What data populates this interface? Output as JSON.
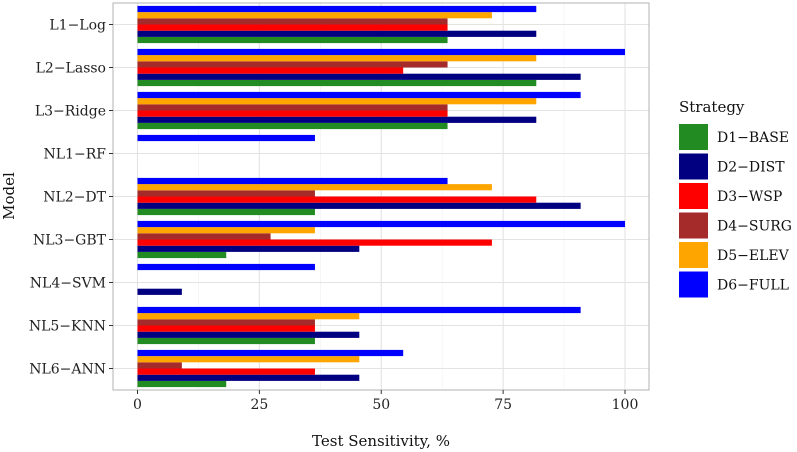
{
  "chart_data": {
    "type": "bar",
    "orientation": "horizontal",
    "categories": [
      "L1−Log",
      "L2−Lasso",
      "L3−Ridge",
      "NL1−RF",
      "NL2−DT",
      "NL3−GBT",
      "NL4−SVM",
      "NL5−KNN",
      "NL6−ANN"
    ],
    "series": [
      {
        "name": "D1−BASE",
        "color": "#228B22",
        "values": [
          63.6,
          81.8,
          63.6,
          0,
          36.4,
          18.2,
          0,
          36.4,
          18.2
        ]
      },
      {
        "name": "D2−DIST",
        "color": "#000080",
        "values": [
          81.8,
          90.9,
          81.8,
          0,
          90.9,
          45.5,
          9.1,
          45.5,
          45.5
        ]
      },
      {
        "name": "D3−WSP",
        "color": "#FF0000",
        "values": [
          63.6,
          54.5,
          63.6,
          0,
          81.8,
          72.7,
          0,
          36.4,
          36.4
        ]
      },
      {
        "name": "D4−SURG",
        "color": "#A52A2A",
        "values": [
          63.6,
          63.6,
          63.6,
          0,
          36.4,
          27.3,
          0,
          36.4,
          9.1
        ]
      },
      {
        "name": "D5−ELEV",
        "color": "#FFA500",
        "values": [
          72.7,
          81.8,
          81.8,
          0,
          72.7,
          36.4,
          0,
          45.5,
          45.5
        ]
      },
      {
        "name": "D6−FULL",
        "color": "#0000FF",
        "values": [
          81.8,
          100,
          90.9,
          36.4,
          63.6,
          100,
          36.4,
          90.9,
          54.5
        ]
      }
    ],
    "xlabel": "Test Sensitivity, %",
    "ylabel": "Model",
    "xlim": [
      0,
      100
    ],
    "xticks": [
      0,
      25,
      50,
      75,
      100
    ],
    "grid": true,
    "legend": {
      "title": "Strategy",
      "position": "right"
    }
  }
}
